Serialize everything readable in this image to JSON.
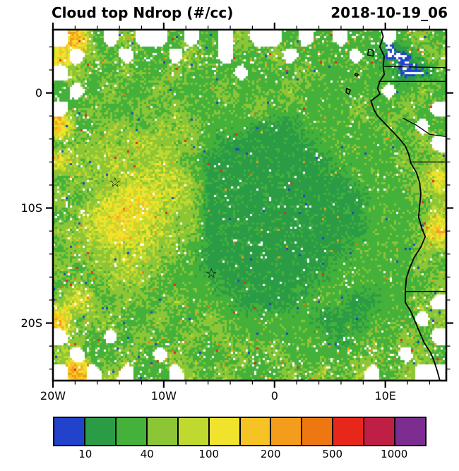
{
  "header": {
    "title": "Cloud top Ndrop (#/cc)",
    "date": "2018-10-19_06"
  },
  "axes": {
    "lon_min": -20,
    "lon_max": 15.5,
    "lat_min": -25,
    "lat_max": 5.5,
    "x_ticks": [
      {
        "lon": -20,
        "label": "20W"
      },
      {
        "lon": -10,
        "label": "10W"
      },
      {
        "lon": 0,
        "label": "0"
      },
      {
        "lon": 10,
        "label": "10E"
      }
    ],
    "y_ticks": [
      {
        "lat": 0,
        "label": "0"
      },
      {
        "lat": -10,
        "label": "10S"
      },
      {
        "lat": -20,
        "label": "20S"
      }
    ],
    "minor_tick_deg": 2
  },
  "colorbar": {
    "colors": [
      "#2143CB",
      "#2B9C46",
      "#43B13A",
      "#8CC637",
      "#BFD92F",
      "#F0E32C",
      "#F5C324",
      "#F49C1B",
      "#EE7711",
      "#E8271C",
      "#C01F45",
      "#7C2D8F"
    ],
    "levels": [
      10,
      20,
      40,
      70,
      100,
      150,
      200,
      300,
      500,
      700,
      1000
    ],
    "labeled_levels": [
      10,
      40,
      100,
      200,
      500,
      1000
    ]
  },
  "markers": [
    {
      "name": "star-marker-1",
      "lon": -14.4,
      "lat": -7.9,
      "symbol": "☆"
    },
    {
      "name": "star-marker-2",
      "lon": -5.7,
      "lat": -15.8,
      "symbol": "☆"
    }
  ],
  "chart_data": {
    "type": "heatmap",
    "title": "Cloud top Ndrop (#/cc)",
    "units": "#/cc",
    "lon_range": [
      -20,
      15.5
    ],
    "lat_range": [
      5.5,
      -25
    ],
    "missing_value": 0,
    "values": [
      [
        0,
        170,
        30,
        0,
        55,
        0,
        0,
        30,
        0,
        30,
        0,
        55,
        0,
        0,
        30,
        0,
        30,
        0,
        30,
        30,
        0,
        30,
        55,
        30
      ],
      [
        120,
        0,
        55,
        30,
        0,
        30,
        30,
        0,
        55,
        30,
        0,
        30,
        30,
        55,
        0,
        30,
        30,
        30,
        0,
        30,
        5,
        5,
        30,
        55
      ],
      [
        0,
        55,
        30,
        30,
        55,
        30,
        30,
        55,
        30,
        30,
        30,
        0,
        30,
        30,
        30,
        55,
        30,
        30,
        30,
        30,
        30,
        5,
        5,
        30
      ],
      [
        30,
        0,
        30,
        55,
        30,
        30,
        55,
        30,
        30,
        30,
        55,
        30,
        30,
        30,
        55,
        30,
        30,
        30,
        30,
        30,
        0,
        30,
        55,
        30
      ],
      [
        0,
        30,
        55,
        30,
        30,
        55,
        30,
        55,
        30,
        30,
        30,
        30,
        55,
        30,
        30,
        30,
        30,
        30,
        55,
        30,
        30,
        55,
        30,
        0
      ],
      [
        170,
        30,
        30,
        55,
        55,
        30,
        55,
        55,
        55,
        30,
        30,
        30,
        15,
        15,
        15,
        30,
        30,
        30,
        30,
        30,
        55,
        30,
        0,
        30
      ],
      [
        30,
        55,
        55,
        55,
        55,
        85,
        55,
        55,
        55,
        30,
        15,
        15,
        15,
        15,
        15,
        15,
        30,
        30,
        30,
        30,
        30,
        30,
        55,
        0
      ],
      [
        120,
        55,
        55,
        85,
        55,
        55,
        85,
        55,
        30,
        15,
        15,
        15,
        15,
        15,
        15,
        15,
        15,
        30,
        30,
        30,
        30,
        55,
        30,
        55
      ],
      [
        30,
        55,
        55,
        55,
        85,
        85,
        85,
        85,
        55,
        15,
        15,
        15,
        15,
        15,
        15,
        15,
        15,
        15,
        30,
        30,
        30,
        30,
        55,
        120
      ],
      [
        55,
        30,
        55,
        85,
        120,
        120,
        85,
        85,
        55,
        15,
        15,
        15,
        15,
        15,
        15,
        15,
        15,
        15,
        15,
        30,
        30,
        30,
        55,
        55
      ],
      [
        30,
        55,
        85,
        120,
        120,
        120,
        85,
        55,
        55,
        15,
        15,
        15,
        15,
        15,
        15,
        15,
        15,
        15,
        15,
        30,
        30,
        30,
        30,
        85
      ],
      [
        55,
        55,
        85,
        120,
        120,
        85,
        85,
        55,
        55,
        15,
        15,
        15,
        15,
        15,
        15,
        15,
        15,
        15,
        15,
        30,
        30,
        30,
        55,
        170
      ],
      [
        30,
        55,
        55,
        85,
        85,
        85,
        55,
        55,
        30,
        15,
        15,
        15,
        15,
        15,
        15,
        15,
        15,
        15,
        30,
        30,
        30,
        30,
        55,
        55
      ],
      [
        55,
        30,
        55,
        55,
        85,
        55,
        55,
        30,
        30,
        15,
        15,
        15,
        15,
        15,
        15,
        15,
        15,
        30,
        30,
        30,
        30,
        30,
        55,
        30
      ],
      [
        30,
        55,
        30,
        55,
        55,
        55,
        30,
        30,
        30,
        30,
        15,
        15,
        15,
        15,
        15,
        15,
        30,
        30,
        30,
        30,
        30,
        30,
        30,
        55
      ],
      [
        55,
        120,
        55,
        30,
        55,
        30,
        30,
        55,
        30,
        30,
        30,
        15,
        15,
        15,
        15,
        30,
        30,
        30,
        15,
        15,
        30,
        30,
        55,
        0
      ],
      [
        170,
        30,
        55,
        55,
        30,
        30,
        55,
        30,
        30,
        55,
        30,
        30,
        30,
        30,
        30,
        30,
        15,
        15,
        15,
        30,
        30,
        30,
        0,
        55
      ],
      [
        0,
        55,
        30,
        0,
        30,
        55,
        30,
        30,
        55,
        30,
        55,
        30,
        30,
        30,
        30,
        30,
        30,
        15,
        30,
        30,
        30,
        55,
        30,
        0
      ],
      [
        55,
        0,
        30,
        30,
        55,
        30,
        0,
        55,
        30,
        30,
        30,
        55,
        30,
        55,
        30,
        30,
        30,
        30,
        30,
        55,
        30,
        0,
        55,
        30
      ],
      [
        0,
        170,
        0,
        55,
        0,
        30,
        30,
        0,
        55,
        30,
        55,
        30,
        30,
        30,
        55,
        30,
        55,
        30,
        55,
        0,
        30,
        55,
        0,
        0
      ]
    ]
  },
  "geo": {
    "coastline": [
      [
        9.6,
        5.6
      ],
      [
        9.8,
        4.9
      ],
      [
        9.5,
        4.0
      ],
      [
        9.9,
        3.2
      ],
      [
        9.8,
        2.3
      ],
      [
        9.9,
        1.6
      ],
      [
        9.5,
        1.0
      ],
      [
        9.3,
        0.4
      ],
      [
        9.5,
        -0.1
      ],
      [
        8.7,
        -0.7
      ],
      [
        9.0,
        -1.5
      ],
      [
        9.3,
        -2.0
      ],
      [
        10.0,
        -2.7
      ],
      [
        10.7,
        -3.4
      ],
      [
        11.2,
        -3.9
      ],
      [
        11.8,
        -4.6
      ],
      [
        12.1,
        -5.3
      ],
      [
        12.3,
        -6.1
      ],
      [
        12.8,
        -6.9
      ],
      [
        13.1,
        -7.8
      ],
      [
        13.2,
        -8.8
      ],
      [
        13.1,
        -9.8
      ],
      [
        13.0,
        -10.8
      ],
      [
        13.3,
        -11.8
      ],
      [
        13.6,
        -12.5
      ],
      [
        13.2,
        -13.4
      ],
      [
        12.6,
        -14.3
      ],
      [
        12.2,
        -15.2
      ],
      [
        11.9,
        -16.1
      ],
      [
        11.8,
        -17.2
      ],
      [
        11.8,
        -18.2
      ],
      [
        12.3,
        -19.0
      ],
      [
        12.7,
        -19.9
      ],
      [
        13.1,
        -20.8
      ],
      [
        13.5,
        -21.7
      ],
      [
        14.1,
        -22.6
      ],
      [
        14.4,
        -23.3
      ],
      [
        14.7,
        -24.2
      ],
      [
        15.0,
        -25.3
      ]
    ],
    "islands": [
      [
        [
          8.5,
          3.8
        ],
        [
          8.9,
          3.7
        ],
        [
          8.9,
          3.2
        ],
        [
          8.4,
          3.3
        ],
        [
          8.5,
          3.8
        ]
      ],
      [
        [
          7.3,
          1.7
        ],
        [
          7.55,
          1.6
        ],
        [
          7.4,
          1.45
        ],
        [
          7.25,
          1.55
        ],
        [
          7.3,
          1.7
        ]
      ],
      [
        [
          6.5,
          0.4
        ],
        [
          6.85,
          0.25
        ],
        [
          6.7,
          -0.1
        ],
        [
          6.45,
          0.05
        ],
        [
          6.5,
          0.4
        ]
      ]
    ],
    "borders": [
      [
        [
          9.9,
          2.3
        ],
        [
          15.5,
          2.2
        ]
      ],
      [
        [
          9.4,
          1.0
        ],
        [
          15.5,
          1.0
        ]
      ],
      [
        [
          11.6,
          -2.2
        ],
        [
          12.8,
          -2.8
        ],
        [
          14.0,
          -3.6
        ],
        [
          15.5,
          -3.8
        ]
      ],
      [
        [
          12.3,
          -6.0
        ],
        [
          15.5,
          -6.0
        ]
      ],
      [
        [
          11.8,
          -17.25
        ],
        [
          15.5,
          -17.25
        ]
      ]
    ]
  }
}
